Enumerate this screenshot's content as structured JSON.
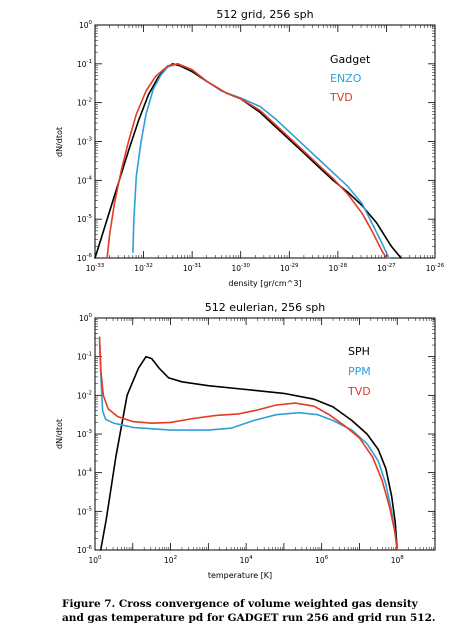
{
  "chart_data": [
    {
      "type": "line",
      "title": "512 grid, 256 sph",
      "xlabel": "density [gr/cm^3]",
      "ylabel": "dN/dtot",
      "xscale": "log",
      "yscale": "log",
      "xlim_exp": [
        -33,
        -26
      ],
      "ylim_exp": [
        -6,
        0
      ],
      "x_tick_labels": [
        "10^{-33}",
        "10^{-32}",
        "10^{-31}",
        "10^{-30}",
        "10^{-29}",
        "10^{-28}",
        "10^{-27}",
        "10^{-26}"
      ],
      "y_tick_labels": [
        "10^{-6}",
        "10^{-5}",
        "10^{-4}",
        "10^{-3}",
        "10^{-2}",
        "10^{-1}",
        "10^{0}"
      ],
      "legend_position": "top-right",
      "series": [
        {
          "name": "Gadget",
          "color": "#000000",
          "points": [
            [
              -33.0,
              -6.0
            ],
            [
              -32.9,
              -5.6
            ],
            [
              -32.7,
              -4.8
            ],
            [
              -32.5,
              -4.0
            ],
            [
              -32.3,
              -3.2
            ],
            [
              -32.1,
              -2.45
            ],
            [
              -31.9,
              -1.8
            ],
            [
              -31.7,
              -1.35
            ],
            [
              -31.55,
              -1.12
            ],
            [
              -31.4,
              -1.0
            ],
            [
              -31.25,
              -1.05
            ],
            [
              -31.0,
              -1.2
            ],
            [
              -30.7,
              -1.45
            ],
            [
              -30.3,
              -1.75
            ],
            [
              -30.0,
              -1.9
            ],
            [
              -29.6,
              -2.25
            ],
            [
              -29.3,
              -2.6
            ],
            [
              -29.0,
              -2.95
            ],
            [
              -28.7,
              -3.3
            ],
            [
              -28.4,
              -3.65
            ],
            [
              -28.1,
              -4.0
            ],
            [
              -27.8,
              -4.3
            ],
            [
              -27.5,
              -4.65
            ],
            [
              -27.2,
              -5.1
            ],
            [
              -26.9,
              -5.7
            ],
            [
              -26.7,
              -6.0
            ]
          ]
        },
        {
          "name": "ENZO",
          "color": "#2f9fd8",
          "points": [
            [
              -32.22,
              -5.85
            ],
            [
              -32.2,
              -5.0
            ],
            [
              -32.15,
              -3.9
            ],
            [
              -32.05,
              -3.0
            ],
            [
              -31.95,
              -2.3
            ],
            [
              -31.8,
              -1.65
            ],
            [
              -31.65,
              -1.3
            ],
            [
              -31.5,
              -1.08
            ],
            [
              -31.3,
              -1.0
            ],
            [
              -31.0,
              -1.15
            ],
            [
              -30.7,
              -1.45
            ],
            [
              -30.4,
              -1.7
            ],
            [
              -30.0,
              -1.88
            ],
            [
              -29.6,
              -2.1
            ],
            [
              -29.3,
              -2.4
            ],
            [
              -29.0,
              -2.75
            ],
            [
              -28.7,
              -3.1
            ],
            [
              -28.4,
              -3.45
            ],
            [
              -28.1,
              -3.8
            ],
            [
              -27.8,
              -4.15
            ],
            [
              -27.5,
              -4.6
            ],
            [
              -27.3,
              -5.1
            ],
            [
              -27.1,
              -5.6
            ],
            [
              -26.95,
              -6.0
            ]
          ]
        },
        {
          "name": "TVD",
          "color": "#e63a22",
          "points": [
            [
              -32.75,
              -6.0
            ],
            [
              -32.7,
              -5.4
            ],
            [
              -32.6,
              -4.6
            ],
            [
              -32.45,
              -3.7
            ],
            [
              -32.3,
              -2.95
            ],
            [
              -32.15,
              -2.3
            ],
            [
              -31.95,
              -1.7
            ],
            [
              -31.75,
              -1.32
            ],
            [
              -31.5,
              -1.05
            ],
            [
              -31.3,
              -1.0
            ],
            [
              -31.0,
              -1.15
            ],
            [
              -30.7,
              -1.45
            ],
            [
              -30.3,
              -1.75
            ],
            [
              -30.0,
              -1.9
            ],
            [
              -29.6,
              -2.2
            ],
            [
              -29.3,
              -2.55
            ],
            [
              -29.0,
              -2.9
            ],
            [
              -28.7,
              -3.25
            ],
            [
              -28.4,
              -3.6
            ],
            [
              -28.1,
              -3.95
            ],
            [
              -27.8,
              -4.35
            ],
            [
              -27.5,
              -4.85
            ],
            [
              -27.3,
              -5.3
            ],
            [
              -27.1,
              -5.8
            ],
            [
              -27.0,
              -6.0
            ]
          ]
        }
      ]
    },
    {
      "type": "line",
      "title": "512 eulerian, 256 sph",
      "xlabel": "temperature [K]",
      "ylabel": "dN/dtot",
      "xscale": "log",
      "yscale": "log",
      "xlim_exp": [
        0,
        9
      ],
      "ylim_exp": [
        -6,
        0
      ],
      "x_tick_labels": [
        "10^{0}",
        "10^{2}",
        "10^{4}",
        "10^{6}",
        "10^{8}"
      ],
      "y_tick_labels": [
        "10^{-6}",
        "10^{-5}",
        "10^{-4}",
        "10^{-3}",
        "10^{-2}",
        "10^{-1}",
        "10^{0}"
      ],
      "legend_position": "top-right",
      "series": [
        {
          "name": "SPH",
          "color": "#000000",
          "points": [
            [
              0.15,
              -6.0
            ],
            [
              0.3,
              -5.2
            ],
            [
              0.55,
              -3.6
            ],
            [
              0.85,
              -2.0
            ],
            [
              1.15,
              -1.3
            ],
            [
              1.35,
              -1.0
            ],
            [
              1.5,
              -1.05
            ],
            [
              1.7,
              -1.3
            ],
            [
              1.95,
              -1.55
            ],
            [
              2.3,
              -1.65
            ],
            [
              3.0,
              -1.75
            ],
            [
              4.0,
              -1.85
            ],
            [
              5.0,
              -1.95
            ],
            [
              5.8,
              -2.1
            ],
            [
              6.3,
              -2.3
            ],
            [
              6.8,
              -2.65
            ],
            [
              7.2,
              -3.0
            ],
            [
              7.5,
              -3.4
            ],
            [
              7.7,
              -3.9
            ],
            [
              7.85,
              -4.6
            ],
            [
              7.95,
              -5.3
            ],
            [
              8.0,
              -6.0
            ]
          ]
        },
        {
          "name": "PPM",
          "color": "#2f9fd8",
          "points": [
            [
              0.12,
              -0.5
            ],
            [
              0.16,
              -1.6
            ],
            [
              0.2,
              -2.4
            ],
            [
              0.28,
              -2.62
            ],
            [
              0.5,
              -2.72
            ],
            [
              1.0,
              -2.83
            ],
            [
              2.0,
              -2.9
            ],
            [
              3.0,
              -2.9
            ],
            [
              3.6,
              -2.85
            ],
            [
              4.2,
              -2.65
            ],
            [
              4.8,
              -2.5
            ],
            [
              5.4,
              -2.45
            ],
            [
              5.9,
              -2.5
            ],
            [
              6.3,
              -2.65
            ],
            [
              6.8,
              -2.9
            ],
            [
              7.2,
              -3.25
            ],
            [
              7.5,
              -3.7
            ],
            [
              7.7,
              -4.3
            ],
            [
              7.85,
              -5.0
            ],
            [
              7.95,
              -5.6
            ],
            [
              8.0,
              -6.0
            ]
          ]
        },
        {
          "name": "TVD",
          "color": "#e63a22",
          "points": [
            [
              0.12,
              -0.5
            ],
            [
              0.16,
              -1.4
            ],
            [
              0.22,
              -2.0
            ],
            [
              0.35,
              -2.35
            ],
            [
              0.6,
              -2.55
            ],
            [
              1.0,
              -2.68
            ],
            [
              1.5,
              -2.72
            ],
            [
              2.0,
              -2.7
            ],
            [
              2.6,
              -2.6
            ],
            [
              3.2,
              -2.52
            ],
            [
              3.8,
              -2.48
            ],
            [
              4.3,
              -2.38
            ],
            [
              4.8,
              -2.25
            ],
            [
              5.3,
              -2.2
            ],
            [
              5.8,
              -2.28
            ],
            [
              6.2,
              -2.5
            ],
            [
              6.6,
              -2.78
            ],
            [
              7.0,
              -3.1
            ],
            [
              7.35,
              -3.6
            ],
            [
              7.6,
              -4.2
            ],
            [
              7.8,
              -4.9
            ],
            [
              7.93,
              -5.5
            ],
            [
              8.0,
              -6.0
            ]
          ]
        }
      ]
    }
  ],
  "caption": "Figure 7. Cross convergence of volume weighted gas density and gas temperature pd for GADGET run 256 and grid run 512."
}
